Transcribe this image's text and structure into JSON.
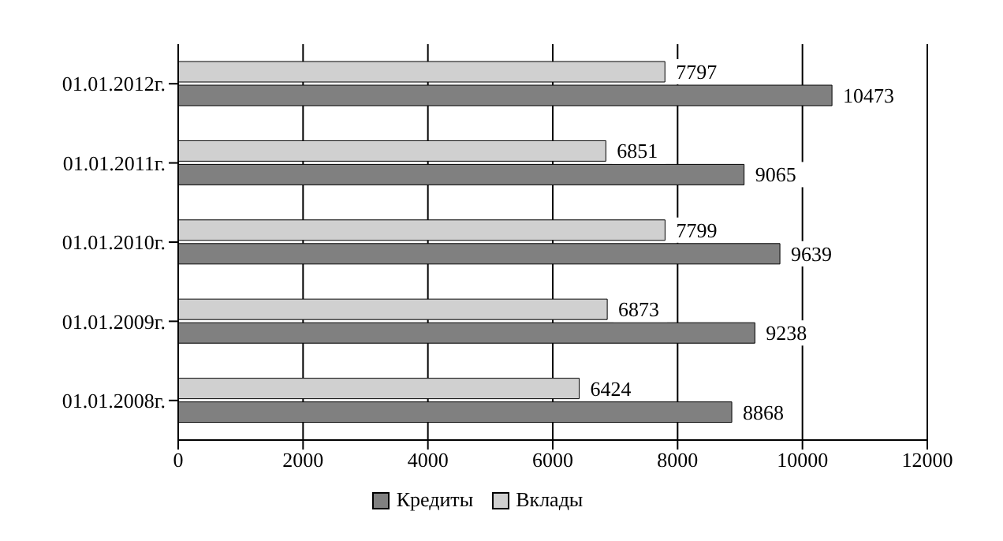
{
  "chart_data": {
    "type": "bar",
    "orientation": "horizontal",
    "categories": [
      "01.01.2012г.",
      "01.01.2011г.",
      "01.01.2010г.",
      "01.01.2009г.",
      "01.01.2008г."
    ],
    "series": [
      {
        "name": "Вклады",
        "color": "#d0d0d0",
        "values": [
          7797,
          6851,
          7799,
          6873,
          6424
        ]
      },
      {
        "name": "Кредиты",
        "color": "#808080",
        "values": [
          10473,
          9065,
          9639,
          9238,
          8868
        ]
      }
    ],
    "xlim": [
      0,
      12000
    ],
    "xticks": [
      0,
      2000,
      4000,
      6000,
      8000,
      10000,
      12000
    ],
    "grid": "x",
    "legend": "bottom",
    "data_labels": true
  }
}
